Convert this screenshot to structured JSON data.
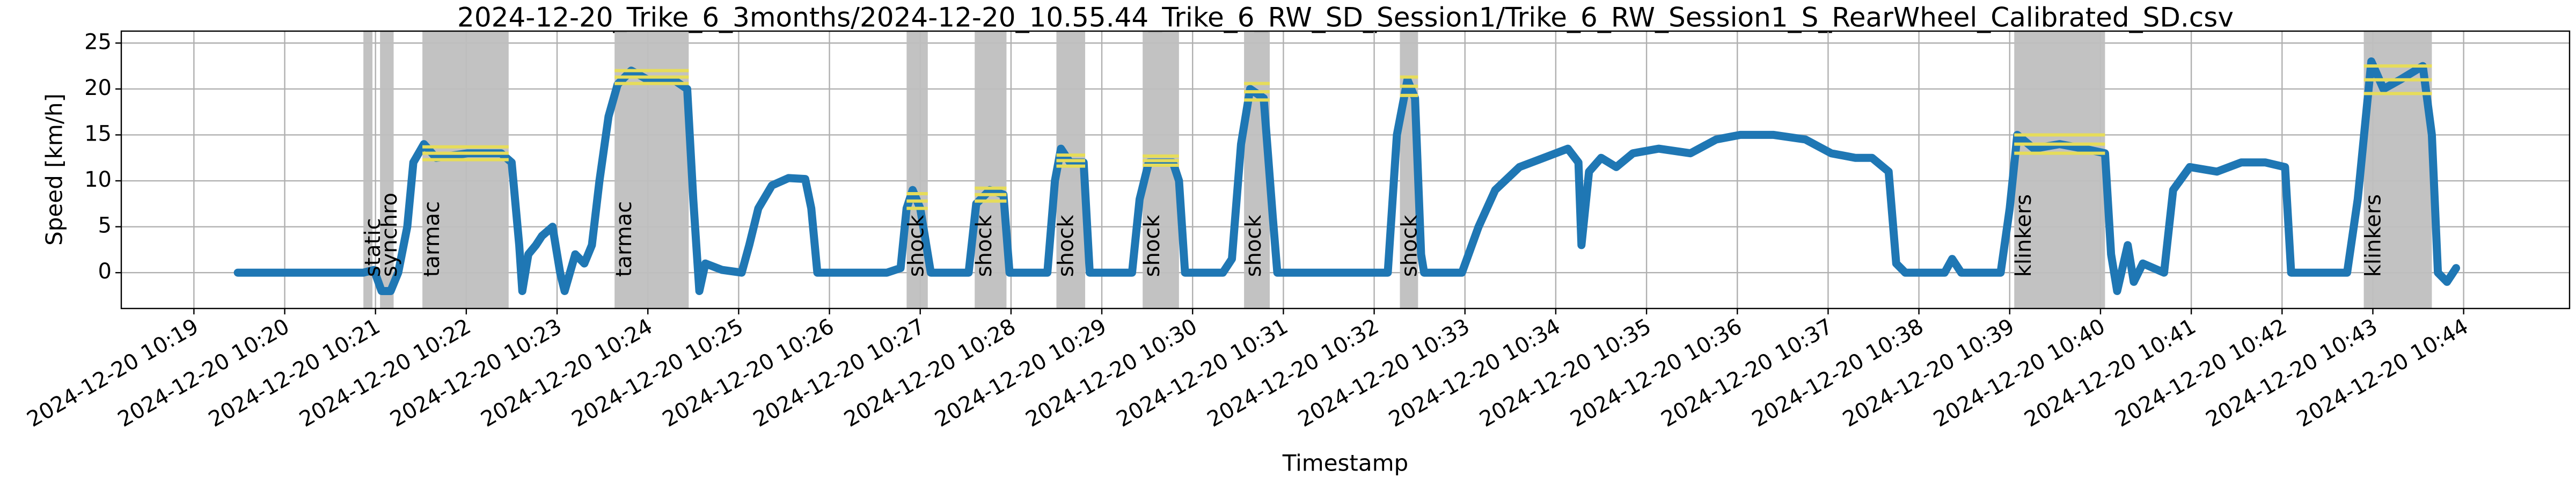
{
  "chart_data": {
    "type": "line",
    "title": "2024-12-20_Trike_6_3months/2024-12-20_10.55.44_Trike_6_RW_SD_Session1/Trike_6_RW_Session1_S_RearWheel_Calibrated_SD.csv",
    "xlabel": "Timestamp",
    "ylabel": "Speed [km/h]",
    "color": "#1f77b4",
    "grid": true,
    "xlim": [
      "2024-12-20 10:18:12",
      "2024-12-20 10:45:10"
    ],
    "ylim": [
      -3.9,
      26.3
    ],
    "yticks": [
      0,
      5,
      10,
      15,
      20,
      25
    ],
    "xticks": [
      "2024-12-20 10:19",
      "2024-12-20 10:20",
      "2024-12-20 10:21",
      "2024-12-20 10:22",
      "2024-12-20 10:23",
      "2024-12-20 10:24",
      "2024-12-20 10:25",
      "2024-12-20 10:26",
      "2024-12-20 10:27",
      "2024-12-20 10:28",
      "2024-12-20 10:29",
      "2024-12-20 10:30",
      "2024-12-20 10:31",
      "2024-12-20 10:32",
      "2024-12-20 10:33",
      "2024-12-20 10:34",
      "2024-12-20 10:35",
      "2024-12-20 10:36",
      "2024-12-20 10:37",
      "2024-12-20 10:38",
      "2024-12-20 10:39",
      "2024-12-20 10:40",
      "2024-12-20 10:41",
      "2024-12-20 10:42",
      "2024-12-20 10:43",
      "2024-12-20 10:44"
    ],
    "region_color": "#bfbfbf",
    "level_color": "#e6dc5a",
    "regions": [
      {
        "label": "static",
        "start": "2024-12-20 10:20:52",
        "end": "2024-12-20 10:20:58",
        "levels": []
      },
      {
        "label": "synchro",
        "start": "2024-12-20 10:21:03",
        "end": "2024-12-20 10:21:12",
        "levels": []
      },
      {
        "label": "tarmac",
        "start": "2024-12-20 10:21:31",
        "end": "2024-12-20 10:22:28",
        "levels": [
          12.3,
          13.0,
          13.7
        ]
      },
      {
        "label": "tarmac",
        "start": "2024-12-20 10:23:38",
        "end": "2024-12-20 10:24:27",
        "levels": [
          20.6,
          21.3,
          22.0
        ]
      },
      {
        "label": "shock",
        "start": "2024-12-20 10:26:51",
        "end": "2024-12-20 10:27:05",
        "levels": [
          7.0,
          7.8,
          8.6
        ]
      },
      {
        "label": "shock",
        "start": "2024-12-20 10:27:36",
        "end": "2024-12-20 10:27:57",
        "levels": [
          7.8,
          8.5,
          9.2
        ]
      },
      {
        "label": "shock",
        "start": "2024-12-20 10:28:30",
        "end": "2024-12-20 10:28:49",
        "levels": [
          11.6,
          12.2,
          12.8
        ]
      },
      {
        "label": "shock",
        "start": "2024-12-20 10:29:27",
        "end": "2024-12-20 10:29:51",
        "levels": [
          11.7,
          12.2,
          12.7
        ]
      },
      {
        "label": "shock",
        "start": "2024-12-20 10:30:34",
        "end": "2024-12-20 10:30:51",
        "levels": [
          18.8,
          19.7,
          20.6
        ]
      },
      {
        "label": "shock",
        "start": "2024-12-20 10:32:17",
        "end": "2024-12-20 10:32:29",
        "levels": [
          19.3,
          20.3,
          21.3
        ]
      },
      {
        "label": "klinkers",
        "start": "2024-12-20 10:39:03",
        "end": "2024-12-20 10:40:03",
        "levels": [
          13.0,
          14.0,
          15.0
        ]
      },
      {
        "label": "klinkers",
        "start": "2024-12-20 10:42:54",
        "end": "2024-12-20 10:43:39",
        "levels": [
          19.5,
          21.0,
          22.5
        ]
      }
    ],
    "x": [
      "2024-12-20 10:19:29",
      "2024-12-20 10:20:40",
      "2024-12-20 10:20:52",
      "2024-12-20 10:20:59",
      "2024-12-20 10:21:04",
      "2024-12-20 10:21:10",
      "2024-12-20 10:21:15",
      "2024-12-20 10:21:21",
      "2024-12-20 10:21:25",
      "2024-12-20 10:21:32",
      "2024-12-20 10:21:40",
      "2024-12-20 10:22:01",
      "2024-12-20 10:22:23",
      "2024-12-20 10:22:30",
      "2024-12-20 10:22:35",
      "2024-12-20 10:22:37",
      "2024-12-20 10:22:41",
      "2024-12-20 10:22:46",
      "2024-12-20 10:22:50",
      "2024-12-20 10:22:57",
      "2024-12-20 10:23:02",
      "2024-12-20 10:23:05",
      "2024-12-20 10:23:12",
      "2024-12-20 10:23:18",
      "2024-12-20 10:23:23",
      "2024-12-20 10:23:28",
      "2024-12-20 10:23:34",
      "2024-12-20 10:23:40",
      "2024-12-20 10:23:49",
      "2024-12-20 10:24:00",
      "2024-12-20 10:24:17",
      "2024-12-20 10:24:26",
      "2024-12-20 10:24:30",
      "2024-12-20 10:24:34",
      "2024-12-20 10:24:38",
      "2024-12-20 10:24:49",
      "2024-12-20 10:25:02",
      "2024-12-20 10:25:07",
      "2024-12-20 10:25:13",
      "2024-12-20 10:25:22",
      "2024-12-20 10:25:33",
      "2024-12-20 10:25:44",
      "2024-12-20 10:25:48",
      "2024-12-20 10:25:52",
      "2024-12-20 10:26:05",
      "2024-12-20 10:26:38",
      "2024-12-20 10:26:47",
      "2024-12-20 10:26:51",
      "2024-12-20 10:26:55",
      "2024-12-20 10:27:00",
      "2024-12-20 10:27:03",
      "2024-12-20 10:27:07",
      "2024-12-20 10:27:32",
      "2024-12-20 10:27:37",
      "2024-12-20 10:27:46",
      "2024-12-20 10:27:55",
      "2024-12-20 10:27:59",
      "2024-12-20 10:28:24",
      "2024-12-20 10:28:29",
      "2024-12-20 10:28:33",
      "2024-12-20 10:28:39",
      "2024-12-20 10:28:48",
      "2024-12-20 10:28:52",
      "2024-12-20 10:29:20",
      "2024-12-20 10:29:25",
      "2024-12-20 10:29:31",
      "2024-12-20 10:29:47",
      "2024-12-20 10:29:51",
      "2024-12-20 10:29:55",
      "2024-12-20 10:30:20",
      "2024-12-20 10:30:26",
      "2024-12-20 10:30:32",
      "2024-12-20 10:30:38",
      "2024-12-20 10:30:47",
      "2024-12-20 10:30:53",
      "2024-12-20 10:30:56",
      "2024-12-20 10:32:09",
      "2024-12-20 10:32:15",
      "2024-12-20 10:32:22",
      "2024-12-20 10:32:27",
      "2024-12-20 10:32:31",
      "2024-12-20 10:32:33",
      "2024-12-20 10:32:58",
      "2024-12-20 10:33:09",
      "2024-12-20 10:33:20",
      "2024-12-20 10:33:36",
      "2024-12-20 10:33:52",
      "2024-12-20 10:34:08",
      "2024-12-20 10:34:15",
      "2024-12-20 10:34:17",
      "2024-12-20 10:34:22",
      "2024-12-20 10:34:30",
      "2024-12-20 10:34:40",
      "2024-12-20 10:34:51",
      "2024-12-20 10:35:08",
      "2024-12-20 10:35:29",
      "2024-12-20 10:35:46",
      "2024-12-20 10:36:02",
      "2024-12-20 10:36:24",
      "2024-12-20 10:36:45",
      "2024-12-20 10:37:02",
      "2024-12-20 10:37:18",
      "2024-12-20 10:37:29",
      "2024-12-20 10:37:40",
      "2024-12-20 10:37:45",
      "2024-12-20 10:37:51",
      "2024-12-20 10:38:17",
      "2024-12-20 10:38:22",
      "2024-12-20 10:38:28",
      "2024-12-20 10:38:54",
      "2024-12-20 10:39:00",
      "2024-12-20 10:39:05",
      "2024-12-20 10:39:16",
      "2024-12-20 10:39:33",
      "2024-12-20 10:39:49",
      "2024-12-20 10:40:03",
      "2024-12-20 10:40:07",
      "2024-12-20 10:40:11",
      "2024-12-20 10:40:18",
      "2024-12-20 10:40:22",
      "2024-12-20 10:40:28",
      "2024-12-20 10:40:42",
      "2024-12-20 10:40:48",
      "2024-12-20 10:40:59",
      "2024-12-20 10:41:17",
      "2024-12-20 10:41:33",
      "2024-12-20 10:41:49",
      "2024-12-20 10:42:02",
      "2024-12-20 10:42:06",
      "2024-12-20 10:42:43",
      "2024-12-20 10:42:50",
      "2024-12-20 10:42:59",
      "2024-12-20 10:43:07",
      "2024-12-20 10:43:18",
      "2024-12-20 10:43:33",
      "2024-12-20 10:43:39",
      "2024-12-20 10:43:43",
      "2024-12-20 10:43:49",
      "2024-12-20 10:43:55"
    ],
    "values": [
      0,
      0,
      0,
      0.3,
      -2,
      -2,
      0,
      5,
      12,
      14,
      12.5,
      13,
      13,
      12,
      3,
      -2,
      2,
      3,
      4,
      5,
      0,
      -2,
      2,
      1,
      3,
      10,
      17,
      20.5,
      22,
      21,
      21,
      20,
      8,
      -2,
      1,
      0.3,
      0,
      3,
      7,
      9.5,
      10.3,
      10.2,
      7,
      0,
      0,
      0,
      0.5,
      7,
      9,
      7,
      4,
      0,
      0,
      7.5,
      9,
      8.5,
      0,
      0,
      10,
      13.5,
      12,
      12,
      0,
      0,
      8,
      12,
      12,
      10,
      0,
      0,
      1.5,
      14,
      20,
      19,
      6,
      0,
      0,
      15,
      21,
      19,
      2,
      0,
      0,
      5,
      9,
      11.5,
      12.5,
      13.5,
      12,
      3,
      11,
      12.5,
      11.5,
      13,
      13.5,
      13,
      14.5,
      15,
      15,
      14.5,
      13,
      12.5,
      12.5,
      11,
      1,
      0,
      0,
      1.5,
      0,
      0,
      7,
      15,
      13.5,
      14,
      13.5,
      13,
      2,
      -2,
      3,
      -1,
      1,
      0,
      9,
      11.5,
      11,
      12,
      12,
      11.5,
      0,
      0,
      8,
      23,
      20,
      21,
      22.5,
      15,
      0,
      -1,
      0.5
    ]
  }
}
